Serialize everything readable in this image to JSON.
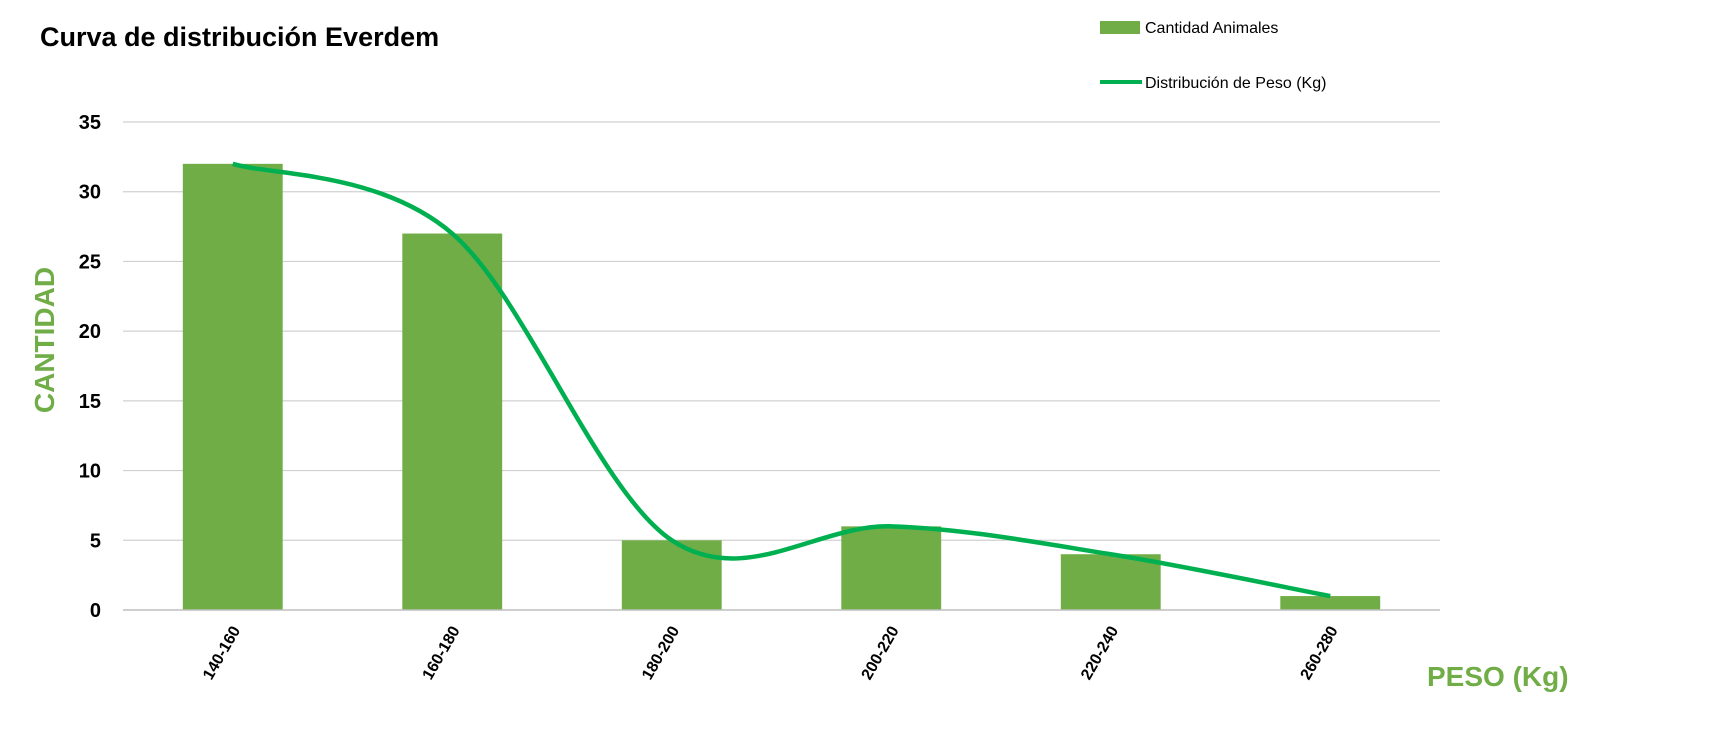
{
  "chart_data": {
    "type": "bar",
    "title": "Curva de distribución Everdem",
    "xlabel": "PESO (Kg)",
    "ylabel": "CANTIDAD",
    "categories": [
      "140-160",
      "160-180",
      "180-200",
      "200-220",
      "220-240",
      "260-280"
    ],
    "series": [
      {
        "name": "Cantidad Animales",
        "type": "bar",
        "values": [
          32,
          27,
          5,
          6,
          4,
          1
        ],
        "color": "#70ad47"
      },
      {
        "name": "Distribución de Peso (Kg)",
        "type": "line",
        "smooth": true,
        "values": [
          32,
          27,
          5,
          6,
          4,
          1
        ],
        "color": "#00b050"
      }
    ],
    "ylim": [
      0,
      35
    ],
    "yticks": [
      0,
      5,
      10,
      15,
      20,
      25,
      30,
      35
    ],
    "grid": true,
    "legend_position": "top-right",
    "axis_title_color": "#70ad47"
  }
}
